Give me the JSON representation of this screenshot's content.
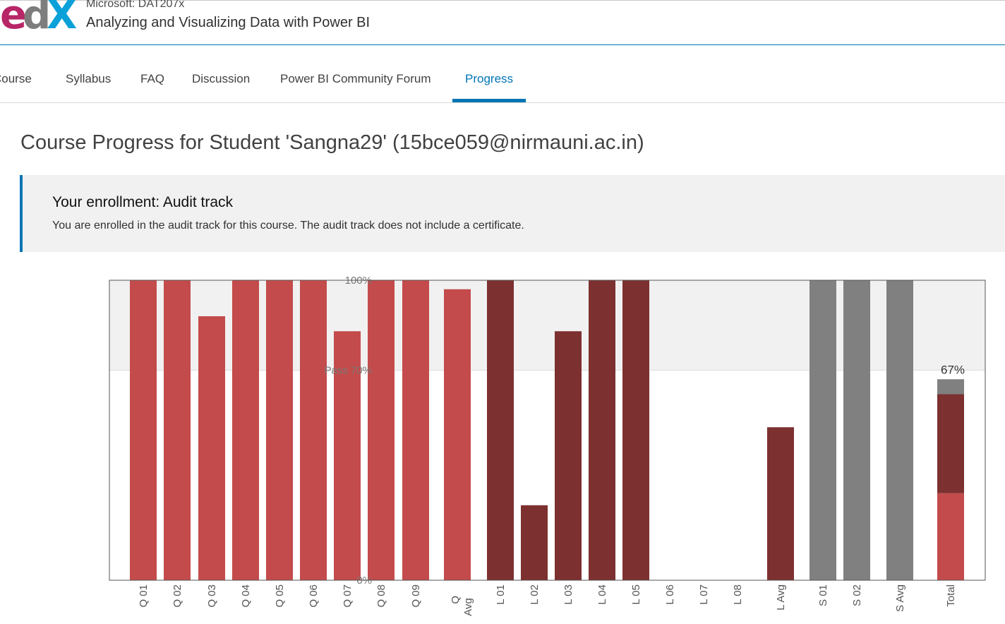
{
  "header": {
    "logo": {
      "e": "e",
      "d": "d",
      "x": "X"
    },
    "course_org": "Microsoft: DAT207x",
    "course_title": "Analyzing and Visualizing Data with Power BI"
  },
  "nav": {
    "tabs": [
      {
        "label": "Course"
      },
      {
        "label": "Syllabus"
      },
      {
        "label": "FAQ"
      },
      {
        "label": "Discussion"
      },
      {
        "label": "Power BI Community Forum"
      },
      {
        "label": "Progress",
        "active": true
      }
    ]
  },
  "page": {
    "title": "Course Progress for Student 'Sangna29' (15bce059@nirmauni.ac.in)"
  },
  "enrollment": {
    "title": "Your enrollment: Audit track",
    "text": "You are enrolled in the audit track for this course. The audit track does not include a certificate."
  },
  "colors": {
    "quiz": "#c44b4b",
    "lab": "#7d3030",
    "survey": "#808080",
    "pass_band": "#f1f1f1",
    "accent": "#0075b4"
  },
  "chart_data": {
    "type": "bar",
    "ylim": [
      0,
      100
    ],
    "y_ticks": [
      {
        "value": 100,
        "label": "100%"
      },
      {
        "value": 70,
        "label": "Pass 70%"
      },
      {
        "value": 0,
        "label": "0%"
      }
    ],
    "categories": [
      "Q 01",
      "Q 02",
      "Q 03",
      "Q 04",
      "Q 05",
      "Q 06",
      "Q 07",
      "Q 08",
      "Q 09",
      "Q Avg",
      "L 01",
      "L 02",
      "L 03",
      "L 04",
      "L 05",
      "L 06",
      "L 07",
      "L 08",
      "L Avg",
      "S 01",
      "S 02",
      "S Avg",
      "Total"
    ],
    "bars": [
      {
        "label": "Q 01",
        "value": 100,
        "group": "quiz"
      },
      {
        "label": "Q 02",
        "value": 100,
        "group": "quiz"
      },
      {
        "label": "Q 03",
        "value": 88,
        "group": "quiz"
      },
      {
        "label": "Q 04",
        "value": 100,
        "group": "quiz"
      },
      {
        "label": "Q 05",
        "value": 100,
        "group": "quiz"
      },
      {
        "label": "Q 06",
        "value": 100,
        "group": "quiz"
      },
      {
        "label": "Q 07",
        "value": 83,
        "group": "quiz"
      },
      {
        "label": "Q 08",
        "value": 100,
        "group": "quiz"
      },
      {
        "label": "Q 09",
        "value": 100,
        "group": "quiz"
      },
      {
        "label": "Q Avg",
        "value": 97,
        "group": "quiz"
      },
      {
        "label": "L 01",
        "value": 100,
        "group": "lab"
      },
      {
        "label": "L 02",
        "value": 25,
        "group": "lab"
      },
      {
        "label": "L 03",
        "value": 83,
        "group": "lab"
      },
      {
        "label": "L 04",
        "value": 100,
        "group": "lab"
      },
      {
        "label": "L 05",
        "value": 100,
        "group": "lab"
      },
      {
        "label": "L 06",
        "value": 0,
        "group": "lab"
      },
      {
        "label": "L 07",
        "value": 0,
        "group": "lab"
      },
      {
        "label": "L 08",
        "value": 0,
        "group": "lab"
      },
      {
        "label": "L Avg",
        "value": 51,
        "group": "lab"
      },
      {
        "label": "S 01",
        "value": 100,
        "group": "survey"
      },
      {
        "label": "S 02",
        "value": 100,
        "group": "survey"
      },
      {
        "label": "S Avg",
        "value": 100,
        "group": "survey"
      }
    ],
    "total": {
      "label": "Total",
      "value_label": "67%",
      "segments": [
        {
          "group": "quiz",
          "value": 29
        },
        {
          "group": "lab",
          "value": 33
        },
        {
          "group": "survey",
          "value": 5
        }
      ]
    }
  }
}
